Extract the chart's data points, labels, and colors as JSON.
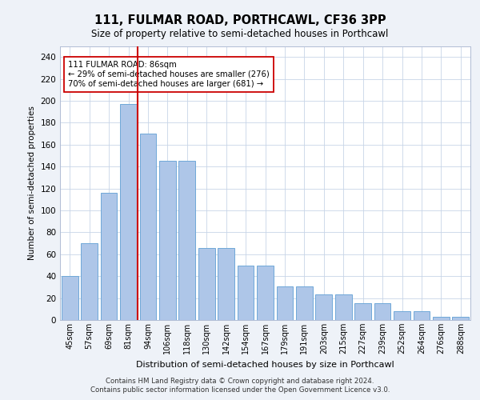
{
  "title_line1": "111, FULMAR ROAD, PORTHCAWL, CF36 3PP",
  "title_line2": "Size of property relative to semi-detached houses in Porthcawl",
  "xlabel": "Distribution of semi-detached houses by size in Porthcawl",
  "ylabel": "Number of semi-detached properties",
  "categories": [
    "45sqm",
    "57sqm",
    "69sqm",
    "81sqm",
    "94sqm",
    "106sqm",
    "118sqm",
    "130sqm",
    "142sqm",
    "154sqm",
    "167sqm",
    "179sqm",
    "191sqm",
    "203sqm",
    "215sqm",
    "227sqm",
    "239sqm",
    "252sqm",
    "264sqm",
    "276sqm",
    "288sqm"
  ],
  "bar_values": [
    40,
    70,
    116,
    197,
    170,
    145,
    145,
    66,
    66,
    50,
    50,
    31,
    31,
    23,
    23,
    15,
    15,
    8,
    8,
    3,
    3
  ],
  "bar_color": "#aec6e8",
  "bar_edgecolor": "#6fa8d8",
  "vline_x": 3.47,
  "vline_color": "#cc0000",
  "annotation_title": "111 FULMAR ROAD: 86sqm",
  "annotation_smaller": "← 29% of semi-detached houses are smaller (276)",
  "annotation_larger": "70% of semi-detached houses are larger (681) →",
  "annotation_box_color": "#ffffff",
  "annotation_box_edgecolor": "#cc0000",
  "ylim": [
    0,
    250
  ],
  "yticks": [
    0,
    20,
    40,
    60,
    80,
    100,
    120,
    140,
    160,
    180,
    200,
    220,
    240
  ],
  "footnote1": "Contains HM Land Registry data © Crown copyright and database right 2024.",
  "footnote2": "Contains public sector information licensed under the Open Government Licence v3.0.",
  "bg_color": "#eef2f8",
  "plot_bg_color": "#ffffff"
}
